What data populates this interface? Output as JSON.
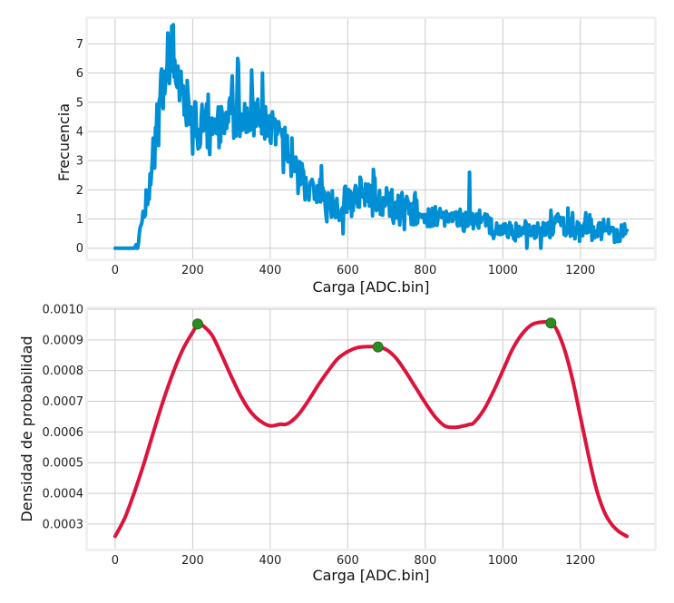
{
  "chart_data": [
    {
      "type": "line",
      "title": "",
      "xlabel": "Carga [ADC.bin]",
      "ylabel": "Frecuencia",
      "xlim": [
        -70,
        1390
      ],
      "ylim": [
        -0.35,
        7.85
      ],
      "xticks": [
        0,
        200,
        400,
        600,
        800,
        1000,
        1200
      ],
      "yticks": [
        0,
        1,
        2,
        3,
        4,
        5,
        6,
        7
      ],
      "grid": true,
      "series": [
        {
          "color": "#008fd5",
          "envelope_x": [
            0,
            50,
            60,
            70,
            80,
            90,
            100,
            110,
            120,
            130,
            140,
            150,
            160,
            170,
            180,
            190,
            200,
            210,
            220,
            230,
            240,
            250,
            260,
            270,
            280,
            290,
            300,
            310,
            320,
            330,
            340,
            350,
            360,
            370,
            380,
            390,
            400,
            410,
            420,
            430,
            440,
            450,
            460,
            470,
            480,
            490,
            500,
            510,
            520,
            530,
            540,
            550,
            560,
            580,
            600,
            620,
            640,
            660,
            680,
            700,
            720,
            740,
            760,
            780,
            800,
            820,
            840,
            860,
            880,
            900,
            920,
            940,
            960,
            980,
            1000,
            1020,
            1040,
            1060,
            1080,
            1100,
            1120,
            1140,
            1160,
            1180,
            1200,
            1220,
            1240,
            1260,
            1280,
            1300,
            1320
          ],
          "envelope_y": [
            0,
            0,
            0.3,
            0.8,
            1.4,
            2.3,
            3.4,
            4.6,
            5.4,
            5.9,
            6.1,
            6.0,
            5.8,
            5.4,
            5.1,
            4.8,
            4.5,
            4.3,
            4.1,
            4.0,
            4.0,
            4.0,
            4.0,
            4.1,
            4.2,
            4.3,
            4.4,
            4.5,
            4.6,
            4.6,
            4.6,
            4.5,
            4.5,
            4.4,
            4.3,
            4.2,
            4.1,
            4.0,
            3.8,
            3.6,
            3.4,
            3.2,
            3.0,
            2.8,
            2.6,
            2.4,
            2.2,
            2.0,
            1.9,
            1.8,
            1.7,
            1.6,
            1.55,
            1.5,
            1.6,
            1.7,
            1.8,
            1.8,
            1.7,
            1.6,
            1.5,
            1.4,
            1.3,
            1.2,
            1.1,
            1.05,
            1.0,
            1.0,
            0.95,
            0.9,
            1.0,
            0.85,
            0.8,
            0.7,
            0.65,
            0.6,
            0.55,
            0.5,
            0.55,
            0.6,
            0.7,
            0.75,
            0.8,
            0.75,
            0.7,
            0.65,
            0.6,
            0.55,
            0.5,
            0.5,
            0.5
          ],
          "noise_seed": 7,
          "spikes": [
            {
              "x": 146,
              "y": 7.6
            },
            {
              "x": 302,
              "y": 5.9
            },
            {
              "x": 316,
              "y": 6.5
            },
            {
              "x": 352,
              "y": 6.1
            },
            {
              "x": 380,
              "y": 6.0
            },
            {
              "x": 666,
              "y": 2.7
            },
            {
              "x": 914,
              "y": 2.6
            },
            {
              "x": 1124,
              "y": 1.3
            }
          ]
        }
      ]
    },
    {
      "type": "line",
      "title": "",
      "xlabel": "Carga [ADC.bin]",
      "ylabel": "Densidad de probabilidad",
      "xlim": [
        -70,
        1390
      ],
      "ylim": [
        0.00022,
        0.001
      ],
      "xticks": [
        0,
        200,
        400,
        600,
        800,
        1000,
        1200
      ],
      "yticks": [
        0.0003,
        0.0004,
        0.0005,
        0.0006,
        0.0007,
        0.0008,
        0.0009,
        0.001
      ],
      "ytick_labels": [
        "0.0003",
        "0.0004",
        "0.0005",
        "0.0006",
        "0.0007",
        "0.0008",
        "0.0009",
        "0.0010"
      ],
      "grid": true,
      "series": [
        {
          "color": "#dc143c",
          "x": [
            0,
            25,
            50,
            75,
            100,
            125,
            150,
            175,
            200,
            215,
            225,
            250,
            275,
            300,
            325,
            350,
            375,
            400,
            425,
            440,
            455,
            475,
            500,
            525,
            550,
            575,
            600,
            625,
            650,
            678,
            700,
            725,
            750,
            775,
            800,
            825,
            850,
            875,
            900,
            915,
            925,
            950,
            975,
            1000,
            1025,
            1050,
            1075,
            1100,
            1124,
            1140,
            1160,
            1180,
            1200,
            1220,
            1240,
            1260,
            1280,
            1300,
            1320
          ],
          "y": [
            0.00026,
            0.00032,
            0.000405,
            0.0005,
            0.000605,
            0.000705,
            0.000795,
            0.00087,
            0.000925,
            0.000952,
            0.000948,
            0.000915,
            0.00085,
            0.00078,
            0.000715,
            0.000665,
            0.000635,
            0.00062,
            0.000625,
            0.000625,
            0.000635,
            0.00066,
            0.000705,
            0.000755,
            0.0008,
            0.00084,
            0.000862,
            0.000875,
            0.000878,
            0.000877,
            0.000868,
            0.00084,
            0.000795,
            0.000745,
            0.000695,
            0.00065,
            0.00062,
            0.000615,
            0.00062,
            0.000625,
            0.00063,
            0.00067,
            0.00073,
            0.0008,
            0.00087,
            0.00092,
            0.00095,
            0.000958,
            0.000955,
            0.00093,
            0.000865,
            0.00077,
            0.00065,
            0.00053,
            0.00042,
            0.000345,
            0.0003,
            0.000275,
            0.00026
          ]
        }
      ],
      "peaks": {
        "color": "#2e8b22",
        "x": [
          213,
          678,
          1124
        ],
        "y": [
          0.000952,
          0.000877,
          0.000955
        ]
      }
    }
  ]
}
